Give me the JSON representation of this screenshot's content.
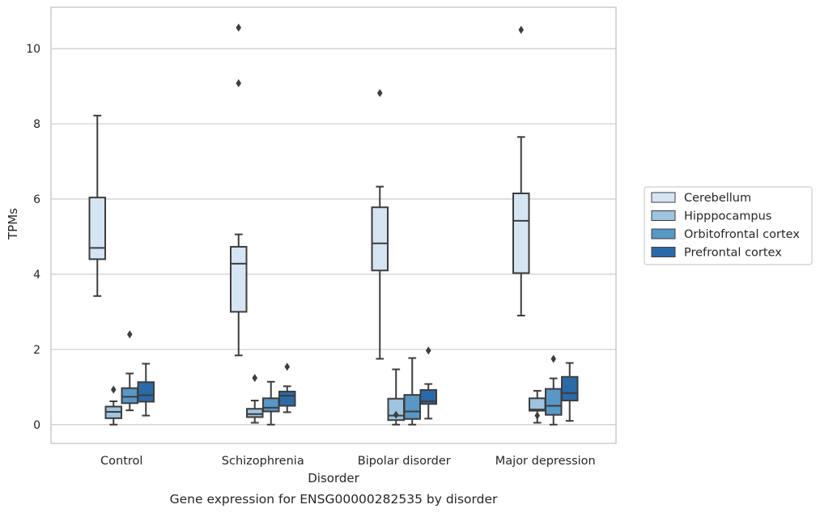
{
  "chart_data": {
    "type": "box",
    "caption": "Gene expression for ENSG00000282535 by disorder",
    "xlabel": "Disorder",
    "ylabel": "TPMs",
    "ylim": [
      -0.5,
      11.1
    ],
    "yticks": [
      0,
      2,
      4,
      6,
      8,
      10
    ],
    "grid": "horizontal",
    "legend_position": "right",
    "categories": [
      "Control",
      "Schizophrenia",
      "Bipolar disorder",
      "Major depression"
    ],
    "series": [
      {
        "name": "Cerebellum",
        "color": "#d6e5f3",
        "boxes": [
          {
            "whisker_low": 3.42,
            "q1": 4.4,
            "median": 4.7,
            "q3": 6.04,
            "whisker_high": 8.22,
            "outliers": []
          },
          {
            "whisker_low": 1.84,
            "q1": 3.0,
            "median": 4.28,
            "q3": 4.73,
            "whisker_high": 5.06,
            "outliers": [
              9.08,
              10.56
            ]
          },
          {
            "whisker_low": 1.75,
            "q1": 4.1,
            "median": 4.82,
            "q3": 5.78,
            "whisker_high": 6.33,
            "outliers": [
              8.82
            ]
          },
          {
            "whisker_low": 2.9,
            "q1": 4.03,
            "median": 5.42,
            "q3": 6.15,
            "whisker_high": 7.65,
            "outliers": [
              10.5
            ]
          }
        ]
      },
      {
        "name": "Hipppocampus",
        "color": "#9ec4df",
        "boxes": [
          {
            "whisker_low": 0.0,
            "q1": 0.17,
            "median": 0.34,
            "q3": 0.48,
            "whisker_high": 0.62,
            "outliers": [
              0.93
            ]
          },
          {
            "whisker_low": 0.05,
            "q1": 0.2,
            "median": 0.28,
            "q3": 0.42,
            "whisker_high": 0.64,
            "outliers": [
              1.24
            ]
          },
          {
            "whisker_low": 0.0,
            "q1": 0.12,
            "median": 0.24,
            "q3": 0.69,
            "whisker_high": 1.47,
            "outliers": [
              0.26
            ]
          },
          {
            "whisker_low": 0.05,
            "q1": 0.37,
            "median": 0.4,
            "q3": 0.7,
            "whisker_high": 0.9,
            "outliers": [
              0.24
            ]
          }
        ]
      },
      {
        "name": "Orbitofrontal cortex",
        "color": "#5897c6",
        "boxes": [
          {
            "whisker_low": 0.38,
            "q1": 0.57,
            "median": 0.74,
            "q3": 0.97,
            "whisker_high": 1.36,
            "outliers": [
              2.4
            ]
          },
          {
            "whisker_low": 0.0,
            "q1": 0.35,
            "median": 0.45,
            "q3": 0.7,
            "whisker_high": 1.14,
            "outliers": []
          },
          {
            "whisker_low": 0.0,
            "q1": 0.15,
            "median": 0.35,
            "q3": 0.79,
            "whisker_high": 1.77,
            "outliers": []
          },
          {
            "whisker_low": 0.0,
            "q1": 0.26,
            "median": 0.5,
            "q3": 0.95,
            "whisker_high": 1.23,
            "outliers": [
              1.75
            ]
          }
        ]
      },
      {
        "name": "Prefrontal cortex",
        "color": "#2b6aa8",
        "boxes": [
          {
            "whisker_low": 0.24,
            "q1": 0.61,
            "median": 0.78,
            "q3": 1.13,
            "whisker_high": 1.62,
            "outliers": []
          },
          {
            "whisker_low": 0.33,
            "q1": 0.5,
            "median": 0.77,
            "q3": 0.88,
            "whisker_high": 1.02,
            "outliers": [
              1.54
            ]
          },
          {
            "whisker_low": 0.16,
            "q1": 0.55,
            "median": 0.62,
            "q3": 0.92,
            "whisker_high": 1.08,
            "outliers": [
              1.97
            ]
          },
          {
            "whisker_low": 0.1,
            "q1": 0.64,
            "median": 0.84,
            "q3": 1.27,
            "whisker_high": 1.64,
            "outliers": []
          }
        ]
      }
    ]
  }
}
